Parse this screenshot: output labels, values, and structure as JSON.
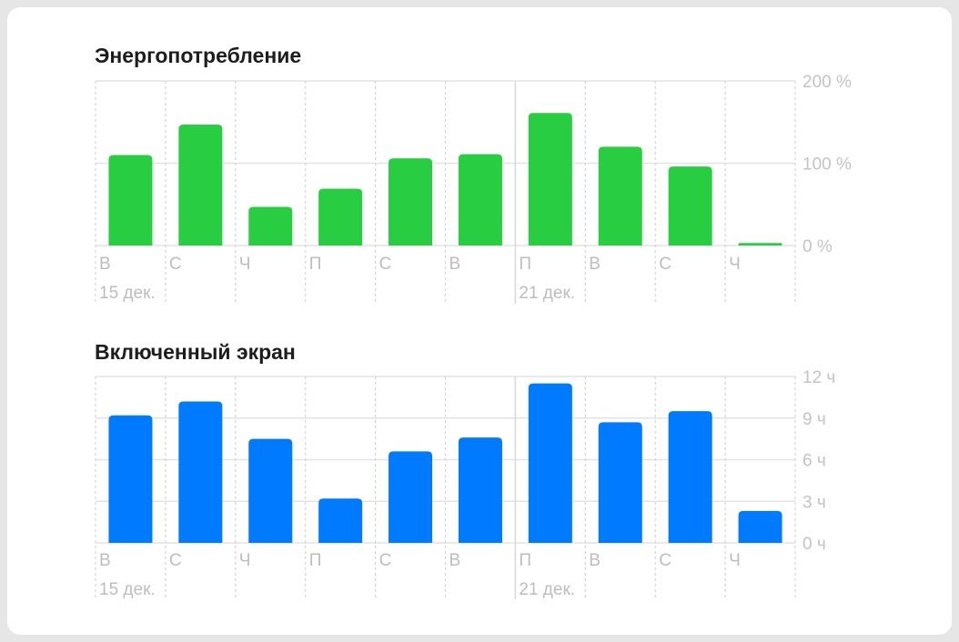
{
  "chart_data": [
    {
      "type": "bar",
      "title": "Энергопотребление",
      "categories": [
        "В",
        "С",
        "Ч",
        "П",
        "С",
        "В",
        "П",
        "В",
        "С",
        "Ч"
      ],
      "values": [
        110,
        147,
        47,
        69,
        106,
        111,
        161,
        120,
        96,
        3
      ],
      "y_ticks": [
        "200 %",
        "100 %",
        "0 %"
      ],
      "ylim": [
        0,
        200
      ],
      "date_labels": [
        {
          "category_index": 0,
          "text": "15 дек."
        },
        {
          "category_index": 6,
          "text": "21 дек."
        }
      ],
      "grid": true,
      "color": "#28cd41"
    },
    {
      "type": "bar",
      "title": "Включенный экран",
      "categories": [
        "В",
        "С",
        "Ч",
        "П",
        "С",
        "В",
        "П",
        "В",
        "С",
        "Ч"
      ],
      "values": [
        9.2,
        10.2,
        7.5,
        3.2,
        6.6,
        7.6,
        11.5,
        8.7,
        9.5,
        2.3
      ],
      "y_ticks": [
        "12 ч",
        "9 ч",
        "6 ч",
        "3 ч",
        "0 ч"
      ],
      "ylim": [
        0,
        12
      ],
      "date_labels": [
        {
          "category_index": 0,
          "text": "15 дек."
        },
        {
          "category_index": 6,
          "text": "21 дек."
        }
      ],
      "grid": true,
      "color": "#007aff"
    }
  ]
}
